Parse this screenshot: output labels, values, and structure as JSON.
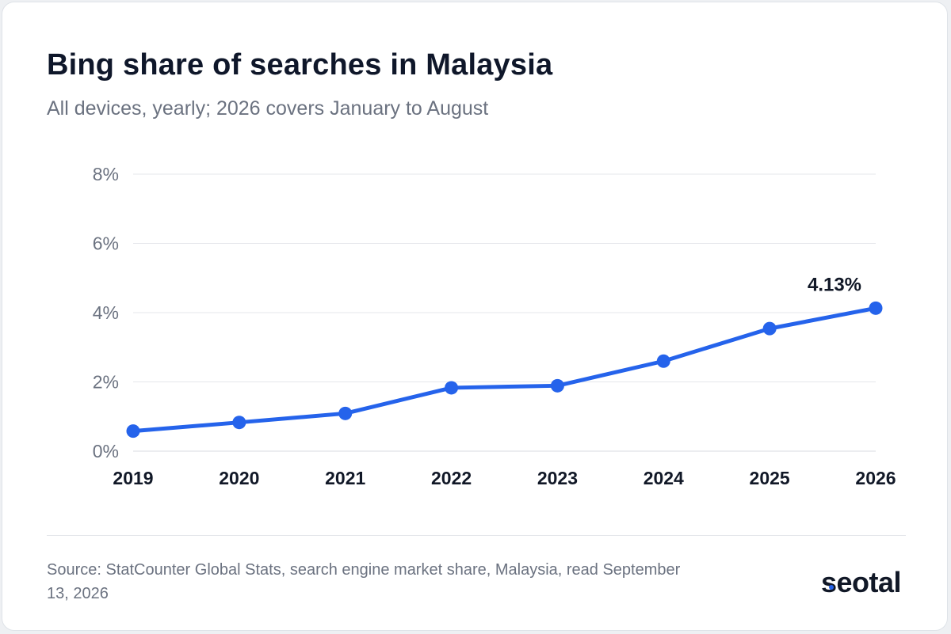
{
  "title": "Bing share of searches in Malaysia",
  "subtitle": "All devices, yearly; 2026 covers January to August",
  "source": "Source: StatCounter Global Stats, search engine market share, Malaysia, read September 13, 2026",
  "brand": "seotal",
  "colors": {
    "line": "#2563eb",
    "grid": "#e5e7eb",
    "tick_text": "#6b7280",
    "category_text": "#111827",
    "brand_accent": "#2563eb"
  },
  "chart_data": {
    "type": "line",
    "title": "Bing share of searches in Malaysia",
    "subtitle": "All devices, yearly; 2026 covers January to August",
    "categories": [
      "2019",
      "2020",
      "2021",
      "2022",
      "2023",
      "2024",
      "2025",
      "2026"
    ],
    "values": [
      0.58,
      0.83,
      1.09,
      1.83,
      1.89,
      2.6,
      3.54,
      4.13
    ],
    "ylim": [
      0,
      8
    ],
    "yticks": [
      0,
      2,
      4,
      6,
      8
    ],
    "ytick_labels": [
      "0%",
      "2%",
      "4%",
      "6%",
      "8%"
    ],
    "grid": true,
    "annotations": [
      {
        "category": "2026",
        "text": "4.13%"
      }
    ]
  }
}
